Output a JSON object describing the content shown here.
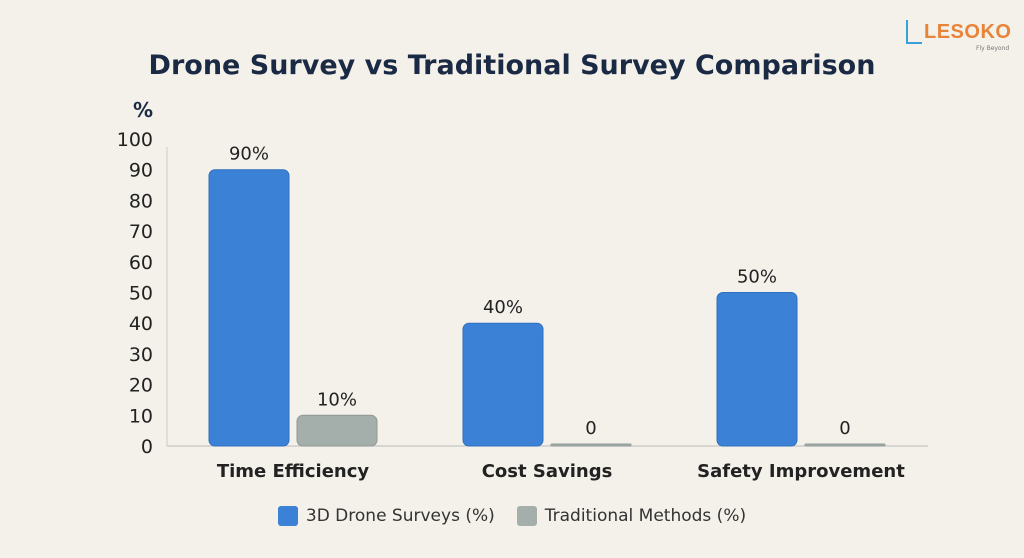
{
  "logo": {
    "name": "LESOKO",
    "tagline": "Fly Beyond"
  },
  "chart_data": {
    "type": "bar",
    "title": "Drone Survey vs Traditional Survey Comparison",
    "ylabel": "%",
    "xlabel": "",
    "ylim": [
      0,
      100
    ],
    "yticks": [
      0,
      10,
      20,
      30,
      40,
      50,
      60,
      70,
      80,
      90,
      100
    ],
    "categories": [
      "Time Efficiency",
      "Cost Savings",
      "Safety Improvement"
    ],
    "series": [
      {
        "name": "3D Drone Surveys (%)",
        "values": [
          90,
          40,
          50
        ],
        "labels": [
          "90%",
          "40%",
          "50%"
        ],
        "color": "#3b82d6"
      },
      {
        "name": "Traditional Methods (%)",
        "values": [
          10,
          0,
          0
        ],
        "labels": [
          "10%",
          "0",
          "0"
        ],
        "color": "#a4aeab"
      }
    ],
    "grid": false,
    "legend": "bottom"
  }
}
